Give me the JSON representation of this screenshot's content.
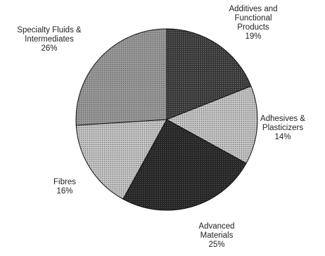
{
  "chart_data": {
    "type": "pie",
    "slices": [
      {
        "name": "Additives and Functional Products",
        "label_lines": [
          "Additives and",
          "Functional",
          "Products"
        ],
        "value": 19,
        "value_label": "19%",
        "color": "#3c3c3c",
        "pattern": "dots-dark"
      },
      {
        "name": "Adhesives & Plasticizers",
        "label_lines": [
          "Adhesives &",
          "Plasticizers"
        ],
        "value": 14,
        "value_label": "14%",
        "color": "#b4b4b4",
        "pattern": "dots-light"
      },
      {
        "name": "Advanced Materials",
        "label_lines": [
          "Advanced",
          "Materials"
        ],
        "value": 25,
        "value_label": "25%",
        "color": "#2a2a2a",
        "pattern": "dots-darkest"
      },
      {
        "name": "Fibres",
        "label_lines": [
          "Fibres"
        ],
        "value": 16,
        "value_label": "16%",
        "color": "#a8a8a8",
        "pattern": "dots-light"
      },
      {
        "name": "Specialty Fluids & Intermediates",
        "label_lines": [
          "Specialty Fluids &",
          "Intermediates"
        ],
        "value": 26,
        "value_label": "26%",
        "color": "#8c8c8c",
        "pattern": "dots-medium"
      }
    ],
    "start_angle_deg": 0,
    "direction": "clockwise",
    "legend": "none"
  }
}
